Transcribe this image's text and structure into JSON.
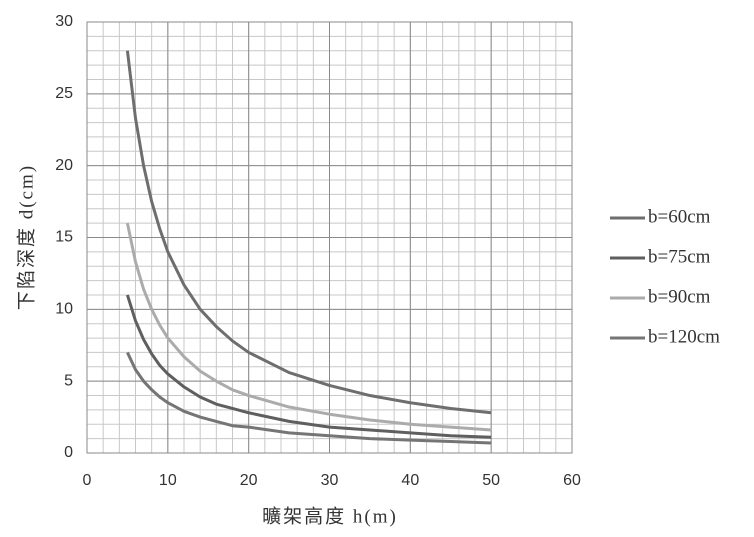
{
  "chart_data": {
    "type": "line",
    "x_label": "曠架高度 h(m)",
    "y_label": "下陷深度 d(cm)",
    "x": [
      5,
      6,
      7,
      8,
      9,
      10,
      12,
      14,
      16,
      18,
      20,
      25,
      30,
      35,
      40,
      45,
      50
    ],
    "series": [
      {
        "name": "b=60cm",
        "color": "#6e6e6e",
        "values": [
          28,
          23.3,
          20,
          17.5,
          15.6,
          14,
          11.7,
          10,
          8.8,
          7.8,
          7,
          5.6,
          4.7,
          4,
          3.5,
          3.1,
          2.8
        ]
      },
      {
        "name": "b=75cm",
        "color": "#5f5f5f",
        "values": [
          11,
          9.2,
          7.9,
          6.9,
          6.1,
          5.5,
          4.6,
          3.9,
          3.4,
          3.1,
          2.8,
          2.2,
          1.8,
          1.6,
          1.4,
          1.2,
          1.1
        ]
      },
      {
        "name": "b=90cm",
        "color": "#ababab",
        "values": [
          16,
          13.3,
          11.4,
          10,
          8.9,
          8,
          6.7,
          5.7,
          5,
          4.4,
          4,
          3.2,
          2.7,
          2.3,
          2,
          1.8,
          1.6
        ]
      },
      {
        "name": "b=120cm",
        "color": "#757575",
        "values": [
          7,
          5.8,
          5,
          4.4,
          3.9,
          3.5,
          2.9,
          2.5,
          2.2,
          1.9,
          1.8,
          1.4,
          1.2,
          1,
          0.9,
          0.8,
          0.7
        ]
      }
    ],
    "xlim": [
      0,
      60
    ],
    "xticks": [
      0,
      10,
      20,
      30,
      40,
      50,
      60
    ],
    "ylim": [
      0,
      30
    ],
    "yticks": [
      0,
      5,
      10,
      15,
      20,
      25,
      30
    ],
    "grid": true,
    "minor_grid": {
      "x": 2,
      "y": 1
    },
    "legend": "right"
  }
}
